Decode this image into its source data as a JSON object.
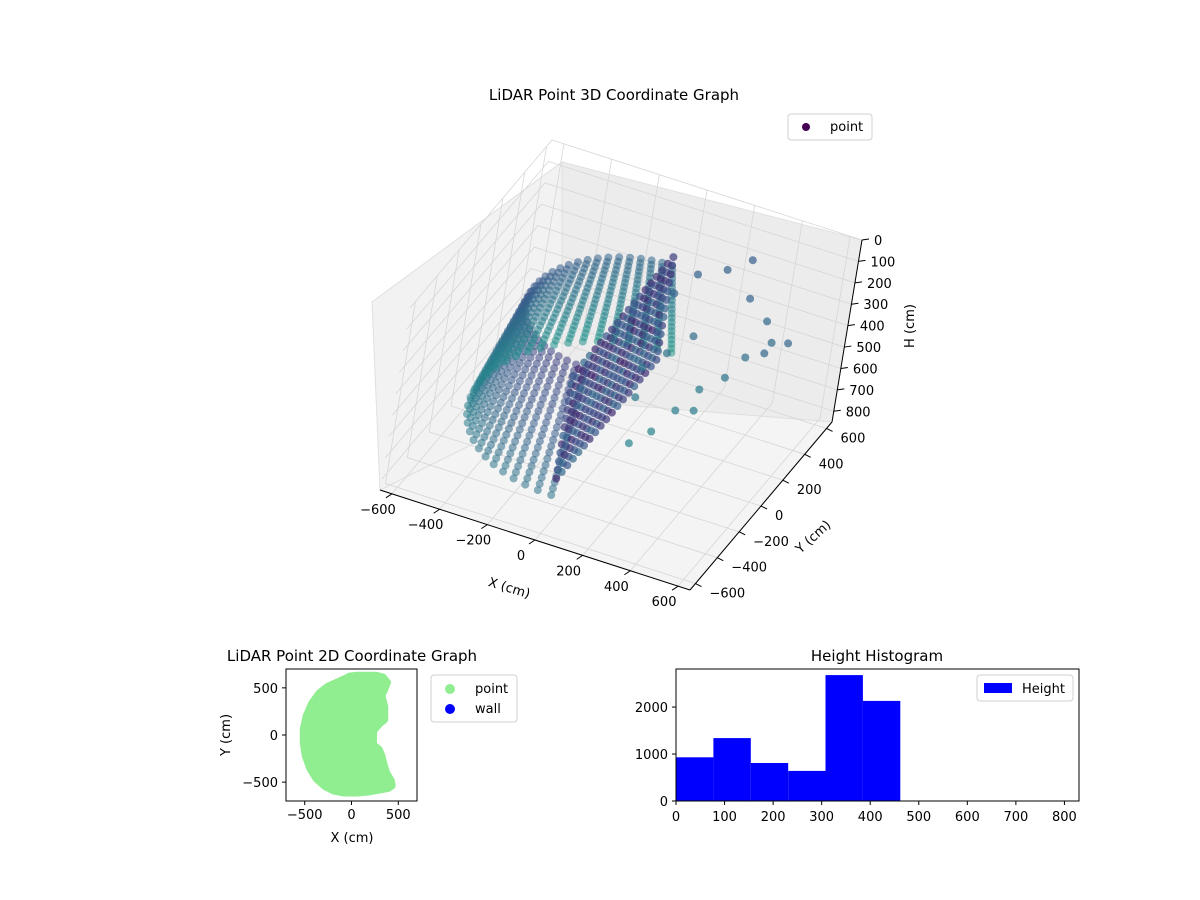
{
  "chart_data": [
    {
      "type": "scatter",
      "projection": "3d",
      "title": "LiDAR Point 3D Coordinate Graph",
      "xlabel": "X (cm)",
      "ylabel": "Y (cm)",
      "zlabel": "H (cm)",
      "x_ticks": [
        "−600",
        "−400",
        "−200",
        "0",
        "200",
        "400",
        "600"
      ],
      "y_ticks": [
        "−600",
        "−400",
        "−200",
        "0",
        "200",
        "400",
        "600"
      ],
      "z_ticks": [
        "0",
        "100",
        "200",
        "300",
        "400",
        "500",
        "600",
        "700",
        "800"
      ],
      "xlim": [
        -650,
        650
      ],
      "ylim": [
        -650,
        650
      ],
      "zlim": [
        0,
        850
      ],
      "z_inverted": true,
      "grid": true,
      "colormap": "viridis",
      "legend": {
        "position": "top-right",
        "entries": [
          {
            "label": "point",
            "color": "#440154"
          }
        ]
      },
      "shape": {
        "description": "half-cylinder shell of points on x <= 0, radius ~550 cm, heights 200-700 cm, plus scattered cluster on positive x",
        "radius": 550,
        "h_range": [
          200,
          700
        ],
        "cluster_points": [
          [
            180,
            520,
            230
          ],
          [
            260,
            560,
            180
          ],
          [
            320,
            430,
            260
          ],
          [
            420,
            380,
            300
          ],
          [
            480,
            300,
            330
          ],
          [
            560,
            260,
            280
          ],
          [
            380,
            120,
            420
          ],
          [
            300,
            80,
            480
          ],
          [
            260,
            -40,
            520
          ],
          [
            220,
            -160,
            560
          ],
          [
            160,
            -220,
            600
          ],
          [
            120,
            -120,
            460
          ],
          [
            60,
            300,
            250
          ],
          [
            100,
            420,
            220
          ],
          [
            420,
            200,
            360
          ],
          [
            500,
            180,
            300
          ],
          [
            340,
            -60,
            480
          ],
          [
            200,
            200,
            340
          ],
          [
            140,
            100,
            380
          ],
          [
            80,
            20,
            420
          ]
        ]
      }
    },
    {
      "type": "scatter",
      "title": "LiDAR Point 2D Coordinate Graph",
      "xlabel": "X (cm)",
      "ylabel": "Y (cm)",
      "x_ticks": [
        "−500",
        "0",
        "500"
      ],
      "y_ticks": [
        "500",
        "0",
        "−500"
      ],
      "xlim": [
        -700,
        700
      ],
      "ylim": [
        -700,
        700
      ],
      "legend": {
        "position": "outside-right",
        "entries": [
          {
            "label": "point",
            "color": "#90ee90"
          },
          {
            "label": "wall",
            "color": "#0000ff"
          }
        ]
      },
      "point_color": "#90ee90",
      "outline": [
        [
          -60,
          610
        ],
        [
          -150,
          570
        ],
        [
          -260,
          520
        ],
        [
          -350,
          450
        ],
        [
          -430,
          340
        ],
        [
          -490,
          200
        ],
        [
          -520,
          60
        ],
        [
          -520,
          -80
        ],
        [
          -500,
          -220
        ],
        [
          -450,
          -360
        ],
        [
          -380,
          -470
        ],
        [
          -290,
          -550
        ],
        [
          -190,
          -600
        ],
        [
          -80,
          -620
        ],
        [
          60,
          -620
        ],
        [
          180,
          -610
        ],
        [
          300,
          -590
        ],
        [
          400,
          -570
        ],
        [
          440,
          -540
        ],
        [
          430,
          -480
        ],
        [
          380,
          -400
        ],
        [
          350,
          -300
        ],
        [
          330,
          -220
        ],
        [
          300,
          -150
        ],
        [
          240,
          -100
        ],
        [
          240,
          40
        ],
        [
          300,
          110
        ],
        [
          360,
          160
        ],
        [
          360,
          300
        ],
        [
          330,
          420
        ],
        [
          360,
          480
        ],
        [
          390,
          560
        ],
        [
          340,
          620
        ],
        [
          260,
          640
        ],
        [
          160,
          640
        ],
        [
          60,
          640
        ],
        [
          -20,
          630
        ]
      ]
    },
    {
      "type": "bar",
      "title": "Height Histogram",
      "xlabel": "",
      "ylabel": "",
      "bin_edges": [
        0,
        77,
        154,
        231,
        308,
        385,
        462
      ],
      "values": [
        930,
        1340,
        810,
        640,
        2680,
        2130
      ],
      "x_ticks": [
        "0",
        "100",
        "200",
        "300",
        "400",
        "500",
        "600",
        "700",
        "800"
      ],
      "y_ticks": [
        "0",
        "1000",
        "2000"
      ],
      "xlim": [
        0,
        830
      ],
      "ylim": [
        0,
        2810
      ],
      "color": "#0000ff",
      "legend": {
        "position": "top-right",
        "entries": [
          {
            "label": "Height",
            "color": "#0000ff"
          }
        ]
      }
    }
  ]
}
